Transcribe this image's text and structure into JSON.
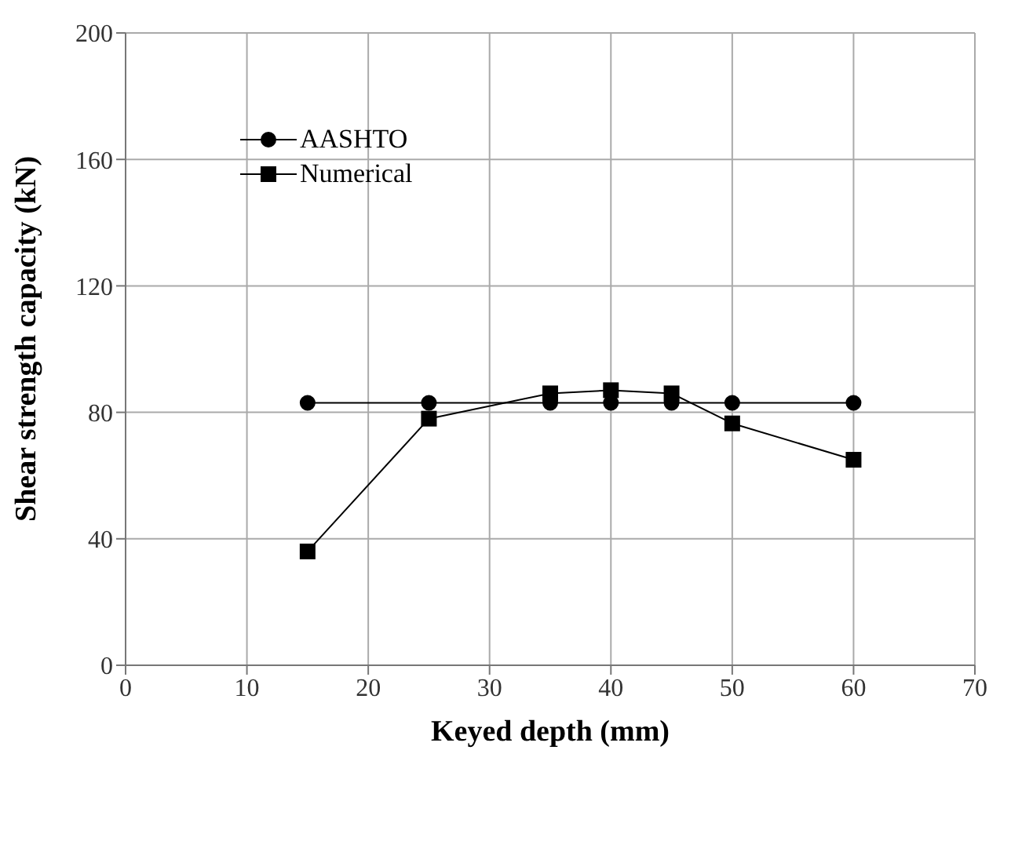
{
  "chart_data": {
    "type": "line",
    "xlabel": "Keyed depth (mm)",
    "ylabel": "Shear strength capacity (kN)",
    "x": [
      15,
      25,
      35,
      40,
      45,
      50,
      60
    ],
    "series": [
      {
        "name": "AASHTO",
        "color": "#000000",
        "marker": "circle",
        "values": [
          83,
          83,
          83,
          83,
          83,
          83,
          83
        ]
      },
      {
        "name": "Numerical",
        "color": "#000000",
        "marker": "square",
        "values": [
          36,
          78,
          86,
          87,
          86,
          76.5,
          65
        ]
      }
    ],
    "xlim": [
      0,
      70
    ],
    "xticks": [
      0,
      10,
      20,
      30,
      40,
      50,
      60,
      70
    ],
    "ylim": [
      0,
      200
    ],
    "yticks": [
      0,
      40,
      80,
      120,
      160,
      200
    ],
    "grid": true,
    "legend": "top left",
    "line_style": "solid"
  }
}
